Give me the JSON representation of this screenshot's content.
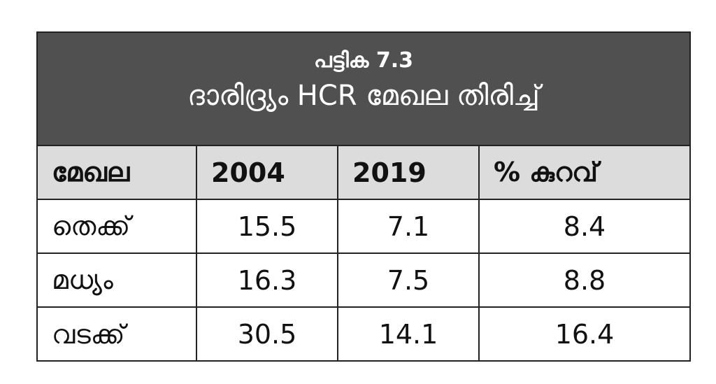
{
  "table": {
    "caption_line1": "പട്ടിക 7.3",
    "caption_line2": "ദാരിദ്ര്യം HCR മേഖല തിരിച്ച്",
    "headers": [
      "മേഖല",
      "2004",
      "2019",
      "% കുറവ്"
    ],
    "rows": [
      [
        "തെക്ക്",
        "15.5",
        "7.1",
        "8.4"
      ],
      [
        "മധ്യം",
        "16.3",
        "7.5",
        "8.8"
      ],
      [
        "വടക്ക്",
        "30.5",
        "14.1",
        "16.4"
      ]
    ]
  }
}
